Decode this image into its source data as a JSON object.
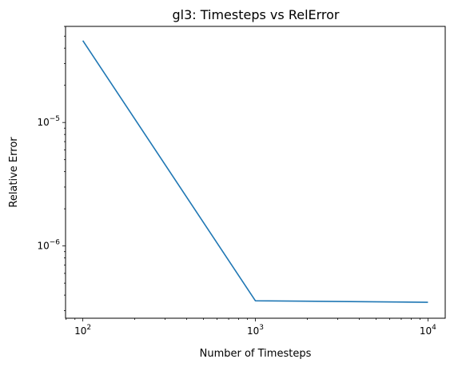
{
  "chart_data": {
    "type": "line",
    "title": "gl3: Timesteps vs RelError",
    "xlabel": "Number of Timesteps",
    "ylabel": "Relative Error",
    "xscale": "log",
    "yscale": "log",
    "xlim": [
      79.4,
      12589
    ],
    "ylim": [
      2.6e-07,
      6e-05
    ],
    "grid": false,
    "x_ticks": [
      {
        "value": 100,
        "base": "10",
        "exp": "2"
      },
      {
        "value": 1000,
        "base": "10",
        "exp": "3"
      },
      {
        "value": 10000,
        "base": "10",
        "exp": "4"
      }
    ],
    "y_ticks": [
      {
        "value": 1e-06,
        "base": "10",
        "exp": "−6"
      },
      {
        "value": 1e-05,
        "base": "10",
        "exp": "−5"
      }
    ],
    "series": [
      {
        "color": "#1f77b4",
        "x": [
          100,
          1000,
          10000
        ],
        "y": [
          4.6e-05,
          3.6e-07,
          3.5e-07
        ]
      }
    ]
  }
}
